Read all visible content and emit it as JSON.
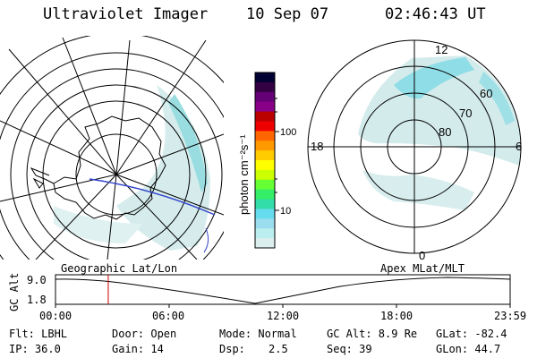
{
  "header": {
    "instrument": "Ultraviolet Imager",
    "date": "10 Sep 07",
    "time": "02:46:43 UT"
  },
  "colorbar": {
    "unit_label": "photon cm⁻²s⁻¹",
    "ticks": [
      "100",
      "10"
    ],
    "colors": [
      "#000033",
      "#330044",
      "#660077",
      "#880088",
      "#bb0000",
      "#ee0000",
      "#ff6600",
      "#ff9900",
      "#ffcc00",
      "#ffff00",
      "#ccff00",
      "#66ff33",
      "#33ee66",
      "#33ddaa",
      "#66ddee",
      "#99ddee",
      "#bbeeee",
      "#ddeeee"
    ]
  },
  "polar_plot": {
    "mlt_labels": [
      "12",
      "18",
      "6",
      "0"
    ],
    "lat_labels": [
      "60",
      "70",
      "80"
    ]
  },
  "labels": {
    "geographic": "Geographic Lat/Lon",
    "apex": "Apex MLat/MLT"
  },
  "altitude_plot": {
    "axis_label": "GC Alt",
    "y_ticks": [
      "9.0",
      "1.8"
    ],
    "x_ticks": [
      "00:00",
      "06:00",
      "12:00",
      "18:00",
      "23:59"
    ],
    "current_time_fraction": 0.116,
    "marker_color": "#cc0000"
  },
  "info": {
    "flt": "Flt: LBHL",
    "door": "Door: Open",
    "mode": "Mode: Normal",
    "gc_alt": "GC Alt: 8.9 Re",
    "glat": "GLat: -82.4",
    "ip": "IP: 36.0",
    "gain": "Gain: 14",
    "dsp_label": "Dsp:",
    "dsp_value": "2.5",
    "seq": "Seq: 39",
    "glon": "GLon:  44.7"
  }
}
